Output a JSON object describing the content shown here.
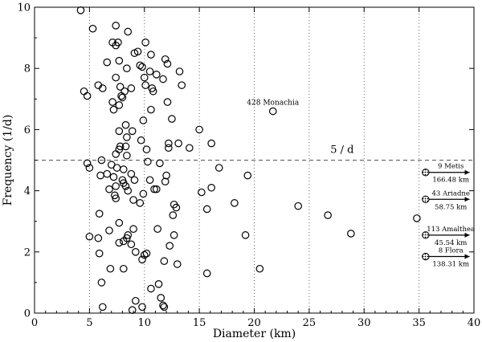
{
  "chart_data": {
    "type": "scatter",
    "xlabel": "Diameter (km)",
    "ylabel": "Frequency (1/d)",
    "xlim": [
      0,
      40
    ],
    "ylim": [
      0,
      10
    ],
    "x_ticks": [
      0,
      5,
      10,
      15,
      20,
      25,
      30,
      35,
      40
    ],
    "y_ticks": [
      0,
      2,
      4,
      6,
      8,
      10
    ],
    "grid": "vertical dotted lines at x = 5, 10, ..., 35",
    "marker": "open-circle",
    "reference_line": {
      "y": 5.0,
      "style": "dashed",
      "label": "5 / d"
    },
    "annotations": [
      {
        "text": "428 Monachia",
        "x": 21.7,
        "y": 6.6
      }
    ],
    "offscale_markers": [
      {
        "name": "9 Metis",
        "diameter_label": "166.48 km",
        "y": 4.6
      },
      {
        "name": "43 Ariadne",
        "diameter_label": "58.75 km",
        "y": 3.72
      },
      {
        "name": "113 Amalthea",
        "diameter_label": "45.54 km",
        "y": 2.55
      },
      {
        "name": "8 Flora",
        "diameter_label": "138.31 km",
        "y": 1.85
      }
    ],
    "points": [
      {
        "x": 4.2,
        "y": 9.9
      },
      {
        "x": 5.3,
        "y": 9.3
      },
      {
        "x": 7.4,
        "y": 9.4
      },
      {
        "x": 8.5,
        "y": 9.2
      },
      {
        "x": 7.1,
        "y": 8.85
      },
      {
        "x": 7.4,
        "y": 8.75
      },
      {
        "x": 7.6,
        "y": 8.85
      },
      {
        "x": 9.1,
        "y": 8.5
      },
      {
        "x": 9.4,
        "y": 8.55
      },
      {
        "x": 10.1,
        "y": 8.85
      },
      {
        "x": 10.6,
        "y": 8.45
      },
      {
        "x": 11.9,
        "y": 8.3
      },
      {
        "x": 12.1,
        "y": 8.15
      },
      {
        "x": 6.6,
        "y": 8.2
      },
      {
        "x": 7.7,
        "y": 8.25
      },
      {
        "x": 9.6,
        "y": 8.1
      },
      {
        "x": 9.8,
        "y": 8.05
      },
      {
        "x": 8.4,
        "y": 8.0
      },
      {
        "x": 10.5,
        "y": 7.9
      },
      {
        "x": 13.2,
        "y": 7.9
      },
      {
        "x": 11.1,
        "y": 7.8
      },
      {
        "x": 7.4,
        "y": 7.7
      },
      {
        "x": 10.0,
        "y": 7.7
      },
      {
        "x": 11.7,
        "y": 7.65
      },
      {
        "x": 5.8,
        "y": 7.45
      },
      {
        "x": 6.2,
        "y": 7.35
      },
      {
        "x": 7.8,
        "y": 7.4
      },
      {
        "x": 8.8,
        "y": 7.35
      },
      {
        "x": 10.1,
        "y": 7.45
      },
      {
        "x": 10.7,
        "y": 7.35
      },
      {
        "x": 10.8,
        "y": 7.25
      },
      {
        "x": 13.4,
        "y": 7.45
      },
      {
        "x": 4.5,
        "y": 7.25
      },
      {
        "x": 4.8,
        "y": 7.1
      },
      {
        "x": 7.9,
        "y": 7.1
      },
      {
        "x": 8.0,
        "y": 7.05
      },
      {
        "x": 7.7,
        "y": 6.8
      },
      {
        "x": 8.2,
        "y": 7.25
      },
      {
        "x": 7.1,
        "y": 6.9
      },
      {
        "x": 7.2,
        "y": 6.65
      },
      {
        "x": 12.1,
        "y": 6.9
      },
      {
        "x": 10.6,
        "y": 6.65
      },
      {
        "x": 12.5,
        "y": 6.35
      },
      {
        "x": 9.9,
        "y": 6.3
      },
      {
        "x": 8.3,
        "y": 6.15
      },
      {
        "x": 7.7,
        "y": 5.95
      },
      {
        "x": 8.9,
        "y": 5.95
      },
      {
        "x": 15.0,
        "y": 6.0
      },
      {
        "x": 8.4,
        "y": 5.75
      },
      {
        "x": 9.7,
        "y": 5.65
      },
      {
        "x": 12.2,
        "y": 5.55
      },
      {
        "x": 13.1,
        "y": 5.55
      },
      {
        "x": 16.1,
        "y": 5.55
      },
      {
        "x": 7.7,
        "y": 5.35
      },
      {
        "x": 7.8,
        "y": 5.45
      },
      {
        "x": 8.3,
        "y": 5.45
      },
      {
        "x": 10.2,
        "y": 5.35
      },
      {
        "x": 12.2,
        "y": 5.4
      },
      {
        "x": 14.1,
        "y": 5.4
      },
      {
        "x": 7.4,
        "y": 5.2
      },
      {
        "x": 8.4,
        "y": 5.15
      },
      {
        "x": 6.1,
        "y": 5.0
      },
      {
        "x": 10.3,
        "y": 4.95
      },
      {
        "x": 11.4,
        "y": 4.9
      },
      {
        "x": 4.8,
        "y": 4.9
      },
      {
        "x": 5.0,
        "y": 4.75
      },
      {
        "x": 7.0,
        "y": 4.85
      },
      {
        "x": 7.5,
        "y": 4.75
      },
      {
        "x": 8.1,
        "y": 4.7
      },
      {
        "x": 16.8,
        "y": 4.75
      },
      {
        "x": 6.0,
        "y": 4.5
      },
      {
        "x": 6.6,
        "y": 4.55
      },
      {
        "x": 7.2,
        "y": 4.45
      },
      {
        "x": 8.8,
        "y": 4.55
      },
      {
        "x": 10.5,
        "y": 4.35
      },
      {
        "x": 12.0,
        "y": 4.5
      },
      {
        "x": 19.4,
        "y": 4.5
      },
      {
        "x": 8.0,
        "y": 4.35
      },
      {
        "x": 8.1,
        "y": 4.25
      },
      {
        "x": 8.3,
        "y": 4.15
      },
      {
        "x": 9.1,
        "y": 4.35
      },
      {
        "x": 11.9,
        "y": 4.3
      },
      {
        "x": 7.4,
        "y": 4.15
      },
      {
        "x": 6.8,
        "y": 4.05
      },
      {
        "x": 8.5,
        "y": 4.0
      },
      {
        "x": 10.9,
        "y": 4.05
      },
      {
        "x": 11.1,
        "y": 4.05
      },
      {
        "x": 16.1,
        "y": 4.1
      },
      {
        "x": 7.4,
        "y": 3.75
      },
      {
        "x": 9.0,
        "y": 3.7
      },
      {
        "x": 9.6,
        "y": 3.6
      },
      {
        "x": 9.9,
        "y": 3.9
      },
      {
        "x": 15.2,
        "y": 3.95
      },
      {
        "x": 7.3,
        "y": 3.85
      },
      {
        "x": 12.7,
        "y": 3.55
      },
      {
        "x": 12.9,
        "y": 3.45
      },
      {
        "x": 15.7,
        "y": 3.4
      },
      {
        "x": 18.2,
        "y": 3.6
      },
      {
        "x": 24.0,
        "y": 3.5
      },
      {
        "x": 5.9,
        "y": 3.25
      },
      {
        "x": 12.6,
        "y": 3.2
      },
      {
        "x": 26.7,
        "y": 3.2
      },
      {
        "x": 7.7,
        "y": 2.95
      },
      {
        "x": 11.2,
        "y": 2.75
      },
      {
        "x": 6.8,
        "y": 2.7
      },
      {
        "x": 9.0,
        "y": 2.75
      },
      {
        "x": 28.8,
        "y": 2.6
      },
      {
        "x": 5.0,
        "y": 2.5
      },
      {
        "x": 8.4,
        "y": 2.45
      },
      {
        "x": 8.5,
        "y": 2.55
      },
      {
        "x": 12.7,
        "y": 2.55
      },
      {
        "x": 19.2,
        "y": 2.55
      },
      {
        "x": 5.8,
        "y": 2.45
      },
      {
        "x": 7.7,
        "y": 2.3
      },
      {
        "x": 8.1,
        "y": 2.35
      },
      {
        "x": 8.8,
        "y": 2.25
      },
      {
        "x": 12.3,
        "y": 2.2
      },
      {
        "x": 5.9,
        "y": 1.95
      },
      {
        "x": 9.2,
        "y": 2.0
      },
      {
        "x": 10.0,
        "y": 1.9
      },
      {
        "x": 10.2,
        "y": 1.95
      },
      {
        "x": 9.8,
        "y": 1.75
      },
      {
        "x": 11.8,
        "y": 1.7
      },
      {
        "x": 13.0,
        "y": 1.6
      },
      {
        "x": 6.9,
        "y": 1.45
      },
      {
        "x": 8.1,
        "y": 1.45
      },
      {
        "x": 20.5,
        "y": 1.45
      },
      {
        "x": 15.7,
        "y": 1.3
      },
      {
        "x": 6.1,
        "y": 1.0
      },
      {
        "x": 11.3,
        "y": 0.95
      },
      {
        "x": 10.6,
        "y": 0.8
      },
      {
        "x": 11.5,
        "y": 0.5
      },
      {
        "x": 9.2,
        "y": 0.4
      },
      {
        "x": 11.7,
        "y": 0.25
      },
      {
        "x": 11.8,
        "y": 0.2
      },
      {
        "x": 6.2,
        "y": 0.2
      },
      {
        "x": 8.9,
        "y": 0.1
      },
      {
        "x": 9.8,
        "y": 0.2
      },
      {
        "x": 21.7,
        "y": 6.6
      },
      {
        "x": 34.8,
        "y": 3.1
      }
    ]
  }
}
